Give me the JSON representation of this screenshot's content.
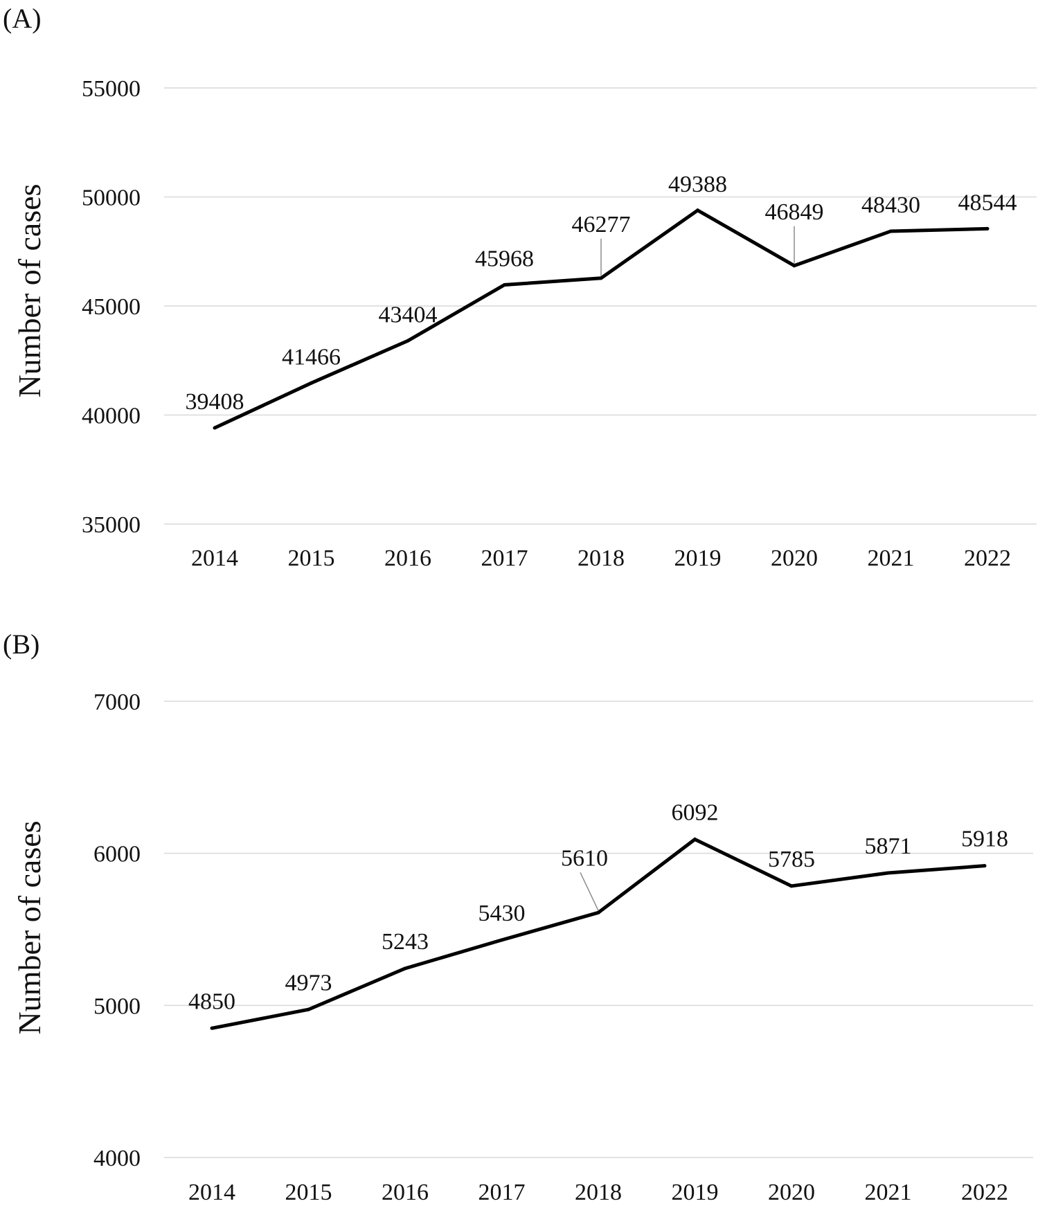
{
  "chart_data": [
    {
      "panel_label": "(A)",
      "type": "line",
      "title": "",
      "xlabel": "",
      "ylabel": "Number of cases",
      "ylim": [
        35000,
        55000
      ],
      "yticks": [
        35000,
        40000,
        45000,
        50000,
        55000
      ],
      "ytick_labels": [
        "35000",
        "40000",
        "45000",
        "50000",
        "55000"
      ],
      "categories": [
        "2014",
        "2015",
        "2016",
        "2017",
        "2018",
        "2019",
        "2020",
        "2021",
        "2022"
      ],
      "series": [
        {
          "name": "Number of cases",
          "values": [
            39408,
            41466,
            43404,
            45968,
            46277,
            49388,
            46849,
            48430,
            48544
          ],
          "labels": [
            "39408",
            "41466",
            "43404",
            "45968",
            "46277",
            "49388",
            "46849",
            "48430",
            "48544"
          ]
        }
      ],
      "grid": true,
      "legend": "none"
    },
    {
      "panel_label": "(B)",
      "type": "line",
      "title": "",
      "xlabel": "",
      "ylabel": "Number of cases",
      "ylim": [
        4000,
        7000
      ],
      "yticks": [
        4000,
        5000,
        6000,
        7000
      ],
      "ytick_labels": [
        "4000",
        "5000",
        "6000",
        "7000"
      ],
      "categories": [
        "2014",
        "2015",
        "2016",
        "2017",
        "2018",
        "2019",
        "2020",
        "2021",
        "2022"
      ],
      "series": [
        {
          "name": "Number of cases",
          "values": [
            4850,
            4973,
            5243,
            5430,
            5610,
            6092,
            5785,
            5871,
            5918
          ],
          "labels": [
            "4850",
            "4973",
            "5243",
            "5430",
            "5610",
            "6092",
            "5785",
            "5871",
            "5918"
          ]
        }
      ],
      "grid": true,
      "legend": "none"
    }
  ]
}
